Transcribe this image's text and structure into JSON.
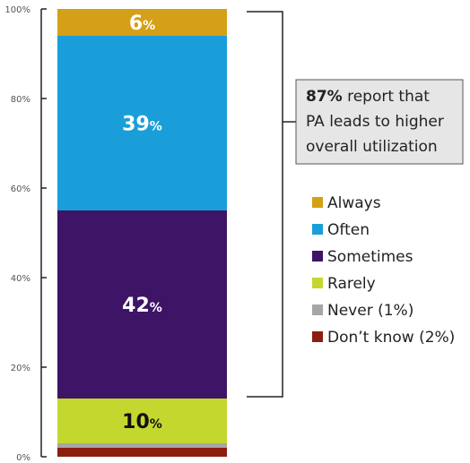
{
  "chart_data": {
    "type": "bar",
    "stacked": true,
    "ylim": [
      0,
      100
    ],
    "yticks": [
      "0%",
      "20%",
      "40%",
      "60%",
      "80%",
      "100%"
    ],
    "series": [
      {
        "name": "Don't know (2%)",
        "value": 2,
        "color": "#8B1E0F",
        "label": ""
      },
      {
        "name": "Never (1%)",
        "value": 1,
        "color": "#A6A6A6",
        "label": ""
      },
      {
        "name": "Rarely",
        "value": 10,
        "color": "#C4D72F",
        "label": "10",
        "label_dark": true
      },
      {
        "name": "Sometimes",
        "value": 42,
        "color": "#3E1467",
        "label": "42",
        "label_dark": false
      },
      {
        "name": "Often",
        "value": 39,
        "color": "#1A9ED9",
        "label": "39",
        "label_dark": false
      },
      {
        "name": "Always",
        "value": 6,
        "color": "#D4A017",
        "label": "6",
        "label_dark": false
      }
    ],
    "percent_sign": "%",
    "legend": [
      {
        "name": "Always",
        "color": "#D4A017"
      },
      {
        "name": "Often",
        "color": "#1A9ED9"
      },
      {
        "name": "Sometimes",
        "color": "#3E1467"
      },
      {
        "name": "Rarely",
        "color": "#C4D72F"
      },
      {
        "name": "Never (1%)",
        "color": "#A6A6A6"
      },
      {
        "name": "Don’t know (2%)",
        "color": "#8B1E0F"
      }
    ],
    "callout": {
      "bold": "87%",
      "line1": " report that",
      "line2": "PA leads to higher",
      "line3": "overall utilization",
      "bracket_range": [
        13,
        100
      ]
    }
  }
}
